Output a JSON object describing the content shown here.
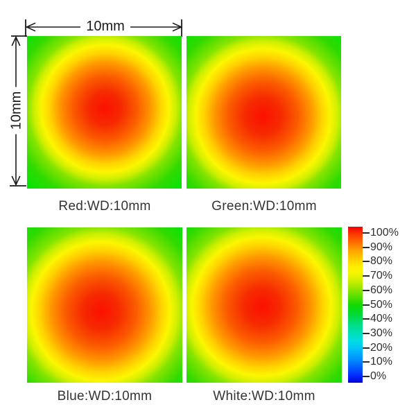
{
  "figure": {
    "kind": "relative-illuminance uniformity maps",
    "background": "#ffffff"
  },
  "annotations": {
    "width_label": "10mm",
    "height_label": "10mm"
  },
  "panels": [
    {
      "id": "red",
      "label": "Red:WD:10mm"
    },
    {
      "id": "green",
      "label": "Green:WD:10mm"
    },
    {
      "id": "blue",
      "label": "Blue:WD:10mm"
    },
    {
      "id": "white",
      "label": "White:WD:10mm"
    }
  ],
  "colorbar": {
    "ticks": [
      "100%",
      "90%",
      "80%",
      "70%",
      "60%",
      "50%",
      "40%",
      "30%",
      "20%",
      "10%",
      "0%"
    ]
  },
  "chart_data": {
    "type": "heatmap",
    "title": "",
    "field_of_view": {
      "width": "10mm",
      "height": "10mm"
    },
    "panels": [
      {
        "name": "Red",
        "working_distance": "10mm",
        "label": "Red:WD:10mm"
      },
      {
        "name": "Green",
        "working_distance": "10mm",
        "label": "Green:WD:10mm"
      },
      {
        "name": "Blue",
        "working_distance": "10mm",
        "label": "Blue:WD:10mm"
      },
      {
        "name": "White",
        "working_distance": "10mm",
        "label": "White:WD:10mm"
      }
    ],
    "value_axis": {
      "label": "",
      "ticks": [
        "100%",
        "90%",
        "80%",
        "70%",
        "60%",
        "50%",
        "40%",
        "30%",
        "20%",
        "10%",
        "0%"
      ],
      "range": [
        0,
        100
      ]
    },
    "radial_profile_estimate_pct": {
      "center": 100,
      "mid_radius": 85,
      "edge_midpoint": 67,
      "corner": 57
    },
    "colormap": {
      "style": "rainbow-jet",
      "anchors": [
        {
          "value": 100,
          "color": "#f00000"
        },
        {
          "value": 95,
          "color": "#fe3c00"
        },
        {
          "value": 90,
          "color": "#ff6c00"
        },
        {
          "value": 85,
          "color": "#ffa000"
        },
        {
          "value": 80,
          "color": "#ffc800"
        },
        {
          "value": 75,
          "color": "#ffeb00"
        },
        {
          "value": 71,
          "color": "#f9f500"
        },
        {
          "value": 67,
          "color": "#ddf200"
        },
        {
          "value": 62,
          "color": "#a9ea00"
        },
        {
          "value": 56,
          "color": "#62df00"
        },
        {
          "value": 50,
          "color": "#14d800"
        },
        {
          "value": 44,
          "color": "#00d934"
        },
        {
          "value": 38,
          "color": "#00dd7c"
        },
        {
          "value": 32,
          "color": "#00dfb6"
        },
        {
          "value": 27,
          "color": "#00dde2"
        },
        {
          "value": 22,
          "color": "#00c3f8"
        },
        {
          "value": 15,
          "color": "#0090ff"
        },
        {
          "value": 10,
          "color": "#0060ff"
        },
        {
          "value": 5,
          "color": "#0030ff"
        },
        {
          "value": 0,
          "color": "#0003d6"
        }
      ]
    }
  }
}
